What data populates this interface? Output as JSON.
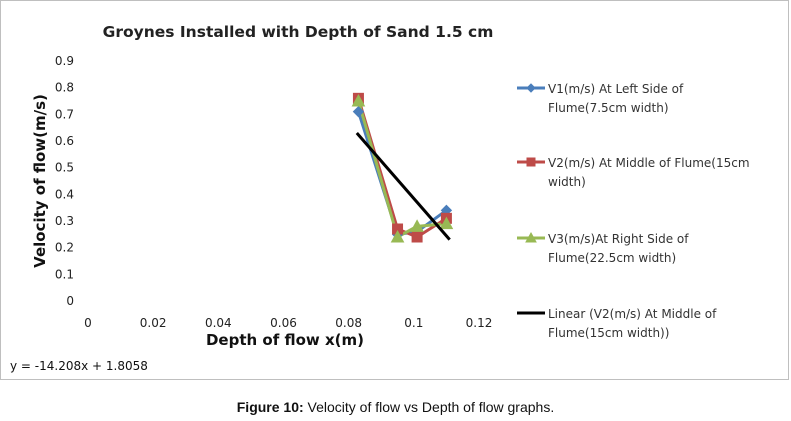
{
  "chart_data": {
    "type": "line",
    "title": "Groynes Installed with Depth of Sand 1.5 cm",
    "xlabel": "Depth of flow x(m)",
    "ylabel": "Velocity of flow(m/s)",
    "xlim": [
      0,
      0.12
    ],
    "ylim": [
      0,
      0.9
    ],
    "x_ticks": [
      "0",
      "0.02",
      "0.04",
      "0.06",
      "0.08",
      "0.1",
      "0.12"
    ],
    "y_ticks": [
      "0",
      "0.1",
      "0.2",
      "0.3",
      "0.4",
      "0.5",
      "0.6",
      "0.7",
      "0.8",
      "0.9"
    ],
    "grid": false,
    "legend_position": "right",
    "series": [
      {
        "name": "V1(m/s) At Left Side of Flume(7.5cm width)",
        "legend_lines": [
          "V1(m/s) At Left Side of",
          "Flume(7.5cm width)"
        ],
        "color": "#4a7ebb",
        "marker": "diamond",
        "x": [
          0.083,
          0.095,
          0.101,
          0.11
        ],
        "y": [
          0.71,
          0.25,
          0.26,
          0.34
        ]
      },
      {
        "name": "V2(m/s) At Middle of Flume(15cm width)",
        "legend_lines": [
          "V2(m/s) At Middle of Flume(15cm",
          "width)"
        ],
        "color": "#be4b48",
        "marker": "square",
        "x": [
          0.083,
          0.095,
          0.101,
          0.11
        ],
        "y": [
          0.76,
          0.27,
          0.24,
          0.31
        ]
      },
      {
        "name": "V3(m/s)At Right Side of Flume(22.5cm width)",
        "legend_lines": [
          "V3(m/s)At Right Side of",
          "Flume(22.5cm width)"
        ],
        "color": "#98b954",
        "marker": "triangle",
        "x": [
          0.083,
          0.095,
          0.101,
          0.11
        ],
        "y": [
          0.75,
          0.24,
          0.28,
          0.29
        ]
      }
    ],
    "trendline": {
      "name": "Linear (V2(m/s) At Middle of Flume(15cm width))",
      "legend_lines": [
        "Linear (V2(m/s) At Middle of",
        "Flume(15cm width))"
      ],
      "color": "#000000",
      "x": [
        0.0825,
        0.111
      ],
      "y": [
        0.63,
        0.23
      ]
    },
    "equation": "y = -14.208x + 1.8058"
  },
  "caption": {
    "label": "Figure 10:",
    "text": " Velocity of flow vs Depth of flow graphs."
  }
}
